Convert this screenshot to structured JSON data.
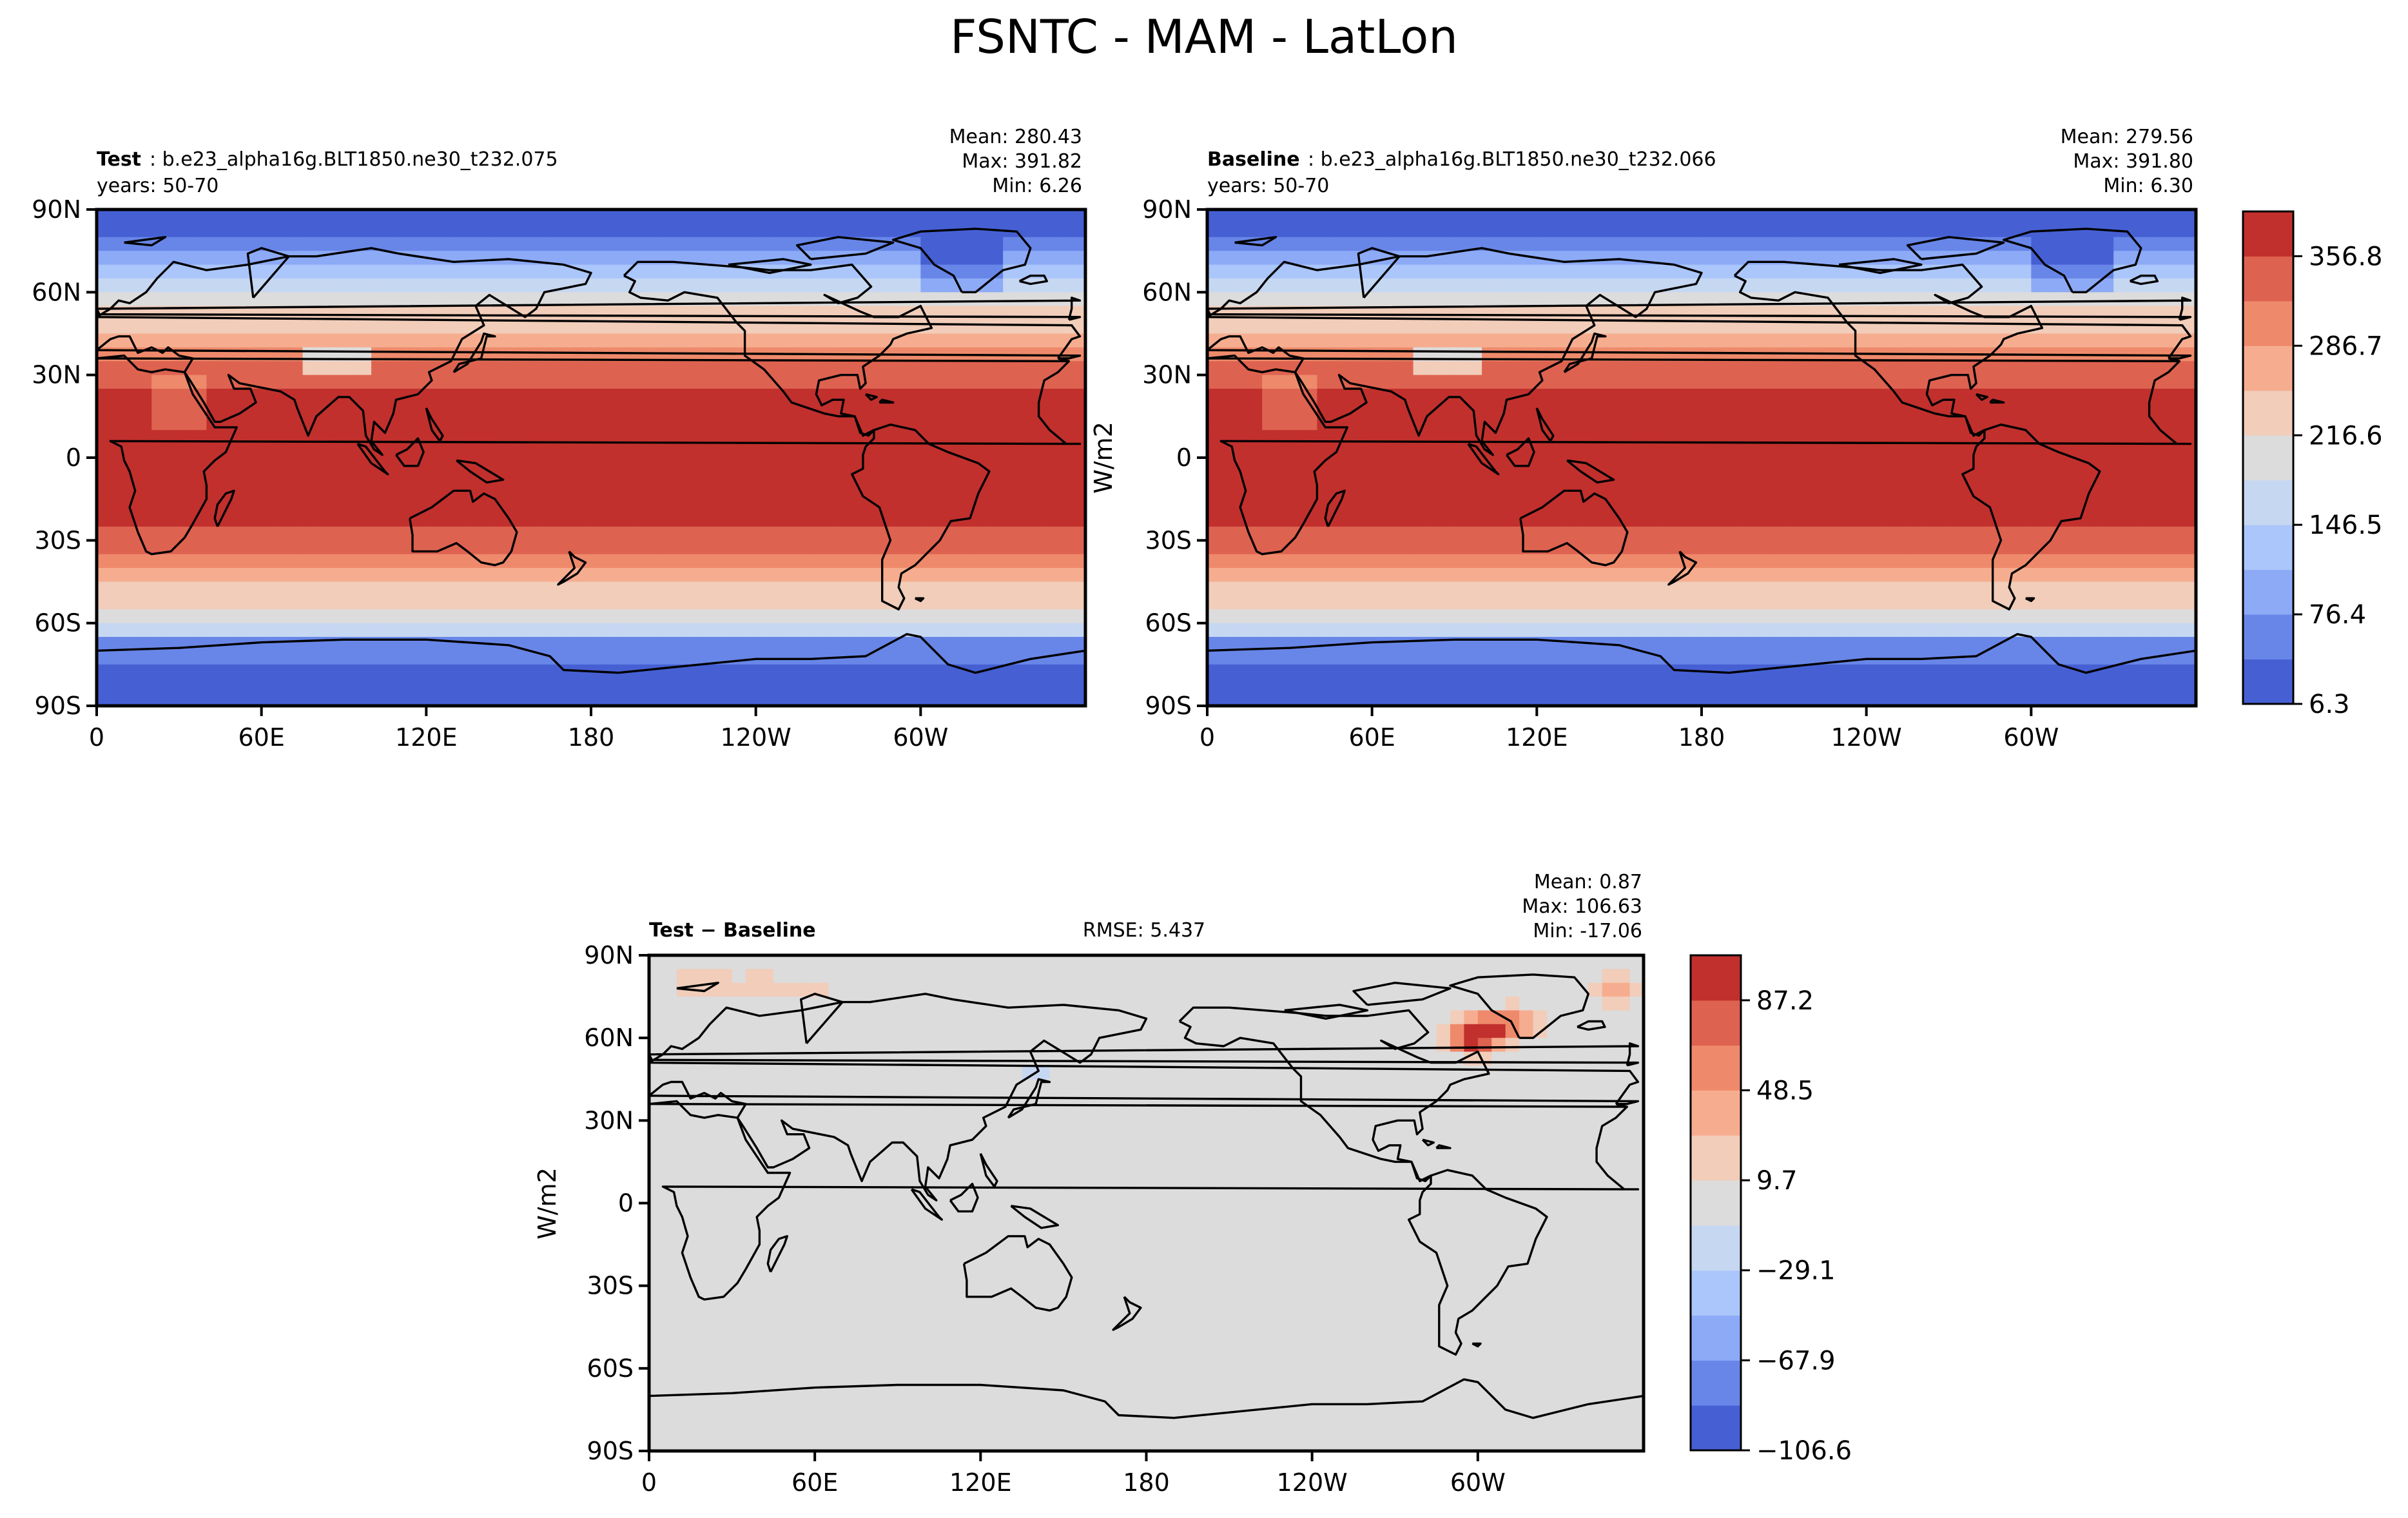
{
  "chart_data": [
    {
      "type": "heatmap",
      "panel": "test",
      "title_bold": "Test",
      "title_rest": ": b.e23_alpha16g.BLT1850.ne30_t232.075",
      "subtitle": "years: 50-70",
      "stats": {
        "mean": "Mean: 280.43",
        "max": "Max: 391.82",
        "min": "Min:  6.26"
      },
      "xticks": [
        "0",
        "60E",
        "120E",
        "180",
        "120W",
        "60W"
      ],
      "yticks": [
        "90N",
        "60N",
        "30N",
        "0",
        "30S",
        "60S",
        "90S"
      ],
      "xlim": [
        0,
        360
      ],
      "ylim": [
        -90,
        90
      ],
      "field_model": "zonal gradient: ~6 W/m2 at poles rising to ~390 W/m2 at equator, land masses slightly lower"
    },
    {
      "type": "heatmap",
      "panel": "baseline",
      "title_bold": "Baseline",
      "title_rest": ": b.e23_alpha16g.BLT1850.ne30_t232.066",
      "subtitle": "years: 50-70",
      "stats": {
        "mean": "Mean: 279.56",
        "max": "Max: 391.80",
        "min": "Min:  6.30"
      },
      "ylabel": "W/m2",
      "xticks": [
        "0",
        "60E",
        "120E",
        "180",
        "120W",
        "60W"
      ],
      "yticks": [
        "90N",
        "60N",
        "30N",
        "0",
        "30S",
        "60S",
        "90S"
      ],
      "xlim": [
        0,
        360
      ],
      "ylim": [
        -90,
        90
      ],
      "colorbar": {
        "labels": [
          "356.8",
          "286.7",
          "216.6",
          "146.5",
          "76.4",
          "6.3"
        ],
        "min": 6.3,
        "max": 391.8,
        "levels": 11
      }
    },
    {
      "type": "heatmap",
      "panel": "difference",
      "title_bold": "Test − Baseline",
      "rmse": "RMSE: 5.437",
      "stats": {
        "mean": "Mean:  0.87",
        "max": "Max: 106.63",
        "min": "Min: -17.06"
      },
      "ylabel": "W/m2",
      "xticks": [
        "0",
        "60E",
        "120E",
        "180",
        "120W",
        "60W"
      ],
      "yticks": [
        "90N",
        "60N",
        "30N",
        "0",
        "30S",
        "60S",
        "90S"
      ],
      "xlim": [
        0,
        360
      ],
      "ylim": [
        -90,
        90
      ],
      "colorbar": {
        "labels": [
          "87.2",
          "48.5",
          "9.7",
          "−29.1",
          "−67.9",
          "−106.6"
        ],
        "min": -106.6,
        "max": 106.6,
        "levels": 11
      },
      "anomalies": [
        {
          "lon": 298,
          "lat": 60,
          "value": 100
        },
        {
          "lon": 305,
          "lat": 64,
          "value": 70
        },
        {
          "lon": 315,
          "lat": 66,
          "value": 40
        },
        {
          "lon": 350,
          "lat": 78,
          "value": 35
        },
        {
          "lon": 20,
          "lat": 80,
          "value": 25
        },
        {
          "lon": 40,
          "lat": 78,
          "value": 22
        },
        {
          "lon": 60,
          "lat": 78,
          "value": 18
        },
        {
          "lon": 140,
          "lat": 46,
          "value": -12
        }
      ]
    }
  ],
  "figure": {
    "title": "FSNTC - MAM - LatLon",
    "colormap": [
      "#4660d4",
      "#6886e8",
      "#8caaf6",
      "#aac6fa",
      "#c6d7f2",
      "#dcdcdc",
      "#f1cdba",
      "#f6ad8f",
      "#ee8a6b",
      "#de6250",
      "#c1302d"
    ]
  }
}
